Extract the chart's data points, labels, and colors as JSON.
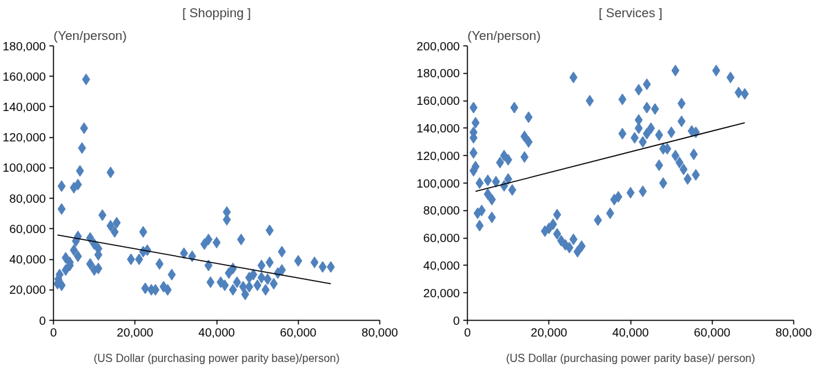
{
  "chart_data": [
    {
      "type": "scatter",
      "title": "[ Shopping ]",
      "ylabel": "(Yen/person)",
      "xlabel": "(US Dollar (purchasing power parity base)/person)",
      "marker": "diamond",
      "grid": false,
      "xlim": [
        0,
        80000
      ],
      "ylim": [
        0,
        180000
      ],
      "xticks": [
        0,
        {
          "value": 20000,
          "label": "20,000"
        },
        {
          "value": 40000,
          "label": "40,000"
        },
        {
          "value": 60000,
          "label": "60,000"
        },
        {
          "value": 80000,
          "label": "80,000"
        }
      ],
      "yticks": [
        0,
        {
          "value": 20000,
          "label": "20,000"
        },
        {
          "value": 40000,
          "label": "40,000"
        },
        {
          "value": 60000,
          "label": "60,000"
        },
        {
          "value": 80000,
          "label": "80,000"
        },
        {
          "value": 100000,
          "label": "100,000"
        },
        {
          "value": 120000,
          "label": "120,000"
        },
        {
          "value": 140000,
          "label": "140,000"
        },
        {
          "value": 160000,
          "label": "160,000"
        },
        {
          "value": 180000,
          "label": "180,000"
        }
      ],
      "series": [
        {
          "color": "#4f81bd",
          "x": [
            1000,
            1200,
            1500,
            2000,
            2000,
            2000,
            3000,
            3000,
            4000,
            4000,
            5000,
            5000,
            5500,
            6000,
            6000,
            6000,
            6500,
            7000,
            7500,
            8000,
            9000,
            9000,
            10000,
            10000,
            11000,
            11000,
            11000,
            12000,
            14000,
            14000,
            15000,
            15500,
            19000,
            21000,
            22000,
            22000,
            22500,
            23000,
            24000,
            25000,
            26000,
            27000,
            28000,
            29000,
            32000,
            34000,
            37000,
            38000,
            38500,
            38000,
            40000,
            41000,
            42000,
            42500,
            42500,
            43000,
            44000,
            44000,
            45000,
            46000,
            46500,
            47000,
            48000,
            48000,
            49000,
            50000,
            51000,
            51000,
            52000,
            52500,
            53000,
            53000,
            54000,
            55000,
            56000,
            56000,
            60000,
            64000,
            66000,
            68000
          ],
          "values": [
            24000,
            27000,
            30000,
            23000,
            88000,
            73000,
            33000,
            41000,
            36000,
            38000,
            87000,
            46000,
            52000,
            89000,
            55000,
            42000,
            98000,
            113000,
            126000,
            158000,
            54000,
            37000,
            50000,
            33000,
            47000,
            43000,
            34000,
            69000,
            62000,
            97000,
            58000,
            64000,
            40000,
            40000,
            45000,
            58000,
            21000,
            46000,
            20000,
            20000,
            37000,
            22000,
            20000,
            30000,
            44000,
            42000,
            50000,
            53000,
            25000,
            36000,
            51000,
            25000,
            23000,
            66000,
            71000,
            31000,
            34000,
            20000,
            25000,
            53000,
            22000,
            17000,
            28000,
            22000,
            30000,
            23000,
            36000,
            28000,
            20000,
            27000,
            59000,
            38000,
            24000,
            31000,
            45000,
            33000,
            39000,
            38000,
            35000,
            35000
          ]
        },
        {
          "type": "line",
          "marker": "none",
          "color": "#000000",
          "x": [
            1000,
            68000
          ],
          "values": [
            56000,
            24000
          ]
        }
      ]
    },
    {
      "type": "scatter",
      "title": "[ Services ]",
      "ylabel": "(Yen/person)",
      "xlabel": "(US Dollar (purchasing power parity base)/ person)",
      "marker": "diamond",
      "grid": false,
      "xlim": [
        0,
        80000
      ],
      "ylim": [
        0,
        200000
      ],
      "xticks": [
        0,
        {
          "value": 20000,
          "label": "20,000"
        },
        {
          "value": 40000,
          "label": "40,000"
        },
        {
          "value": 60000,
          "label": "60,000"
        },
        {
          "value": 80000,
          "label": "80,000"
        }
      ],
      "yticks": [
        0,
        {
          "value": 20000,
          "label": "20,000"
        },
        {
          "value": 40000,
          "label": "40,000"
        },
        {
          "value": 60000,
          "label": "60,000"
        },
        {
          "value": 80000,
          "label": "80,000"
        },
        {
          "value": 100000,
          "label": "100,000"
        },
        {
          "value": 120000,
          "label": "120,000"
        },
        {
          "value": 140000,
          "label": "140,000"
        },
        {
          "value": 160000,
          "label": "160,000"
        },
        {
          "value": 180000,
          "label": "180,000"
        },
        {
          "value": 200000,
          "label": "200,000"
        }
      ],
      "series": [
        {
          "color": "#4f81bd",
          "x": [
            1500,
            2000,
            1500,
            1500,
            1500,
            2000,
            1500,
            3000,
            2500,
            3000,
            3500,
            5000,
            5000,
            6000,
            6000,
            7000,
            8000,
            9000,
            9000,
            10000,
            10000,
            11000,
            11500,
            14000,
            14000,
            15000,
            15000,
            19000,
            20000,
            21000,
            22000,
            22000,
            23000,
            24000,
            25000,
            26000,
            26000,
            27000,
            28000,
            30000,
            32000,
            35000,
            36000,
            37000,
            38000,
            38000,
            40000,
            41000,
            42000,
            42000,
            42000,
            43000,
            43000,
            44000,
            44000,
            44000,
            45000,
            46000,
            47000,
            47000,
            48000,
            48000,
            49000,
            50000,
            51000,
            51000,
            52000,
            52500,
            52500,
            53000,
            54000,
            55000,
            55500,
            56000,
            56000,
            61000,
            64500,
            66500,
            68000
          ],
          "values": [
            155000,
            144000,
            137000,
            133000,
            122000,
            112000,
            109000,
            100000,
            78000,
            69000,
            80000,
            102000,
            92000,
            88000,
            75000,
            101000,
            115000,
            120000,
            98000,
            117000,
            103000,
            95000,
            155000,
            134000,
            119000,
            130000,
            148000,
            65000,
            67000,
            70000,
            77000,
            63000,
            58000,
            55000,
            53000,
            59000,
            177000,
            50000,
            54000,
            160000,
            73000,
            78000,
            88000,
            90000,
            161000,
            136000,
            93000,
            133000,
            140000,
            146000,
            168000,
            94000,
            130000,
            172000,
            155000,
            136000,
            140000,
            154000,
            113000,
            135000,
            100000,
            125000,
            125000,
            137000,
            182000,
            120000,
            115000,
            158000,
            145000,
            110000,
            103000,
            138000,
            121000,
            106000,
            137000,
            182000,
            177000,
            166000,
            165000
          ]
        },
        {
          "type": "line",
          "marker": "none",
          "color": "#000000",
          "x": [
            2000,
            68000
          ],
          "values": [
            94000,
            144000
          ]
        }
      ]
    }
  ]
}
